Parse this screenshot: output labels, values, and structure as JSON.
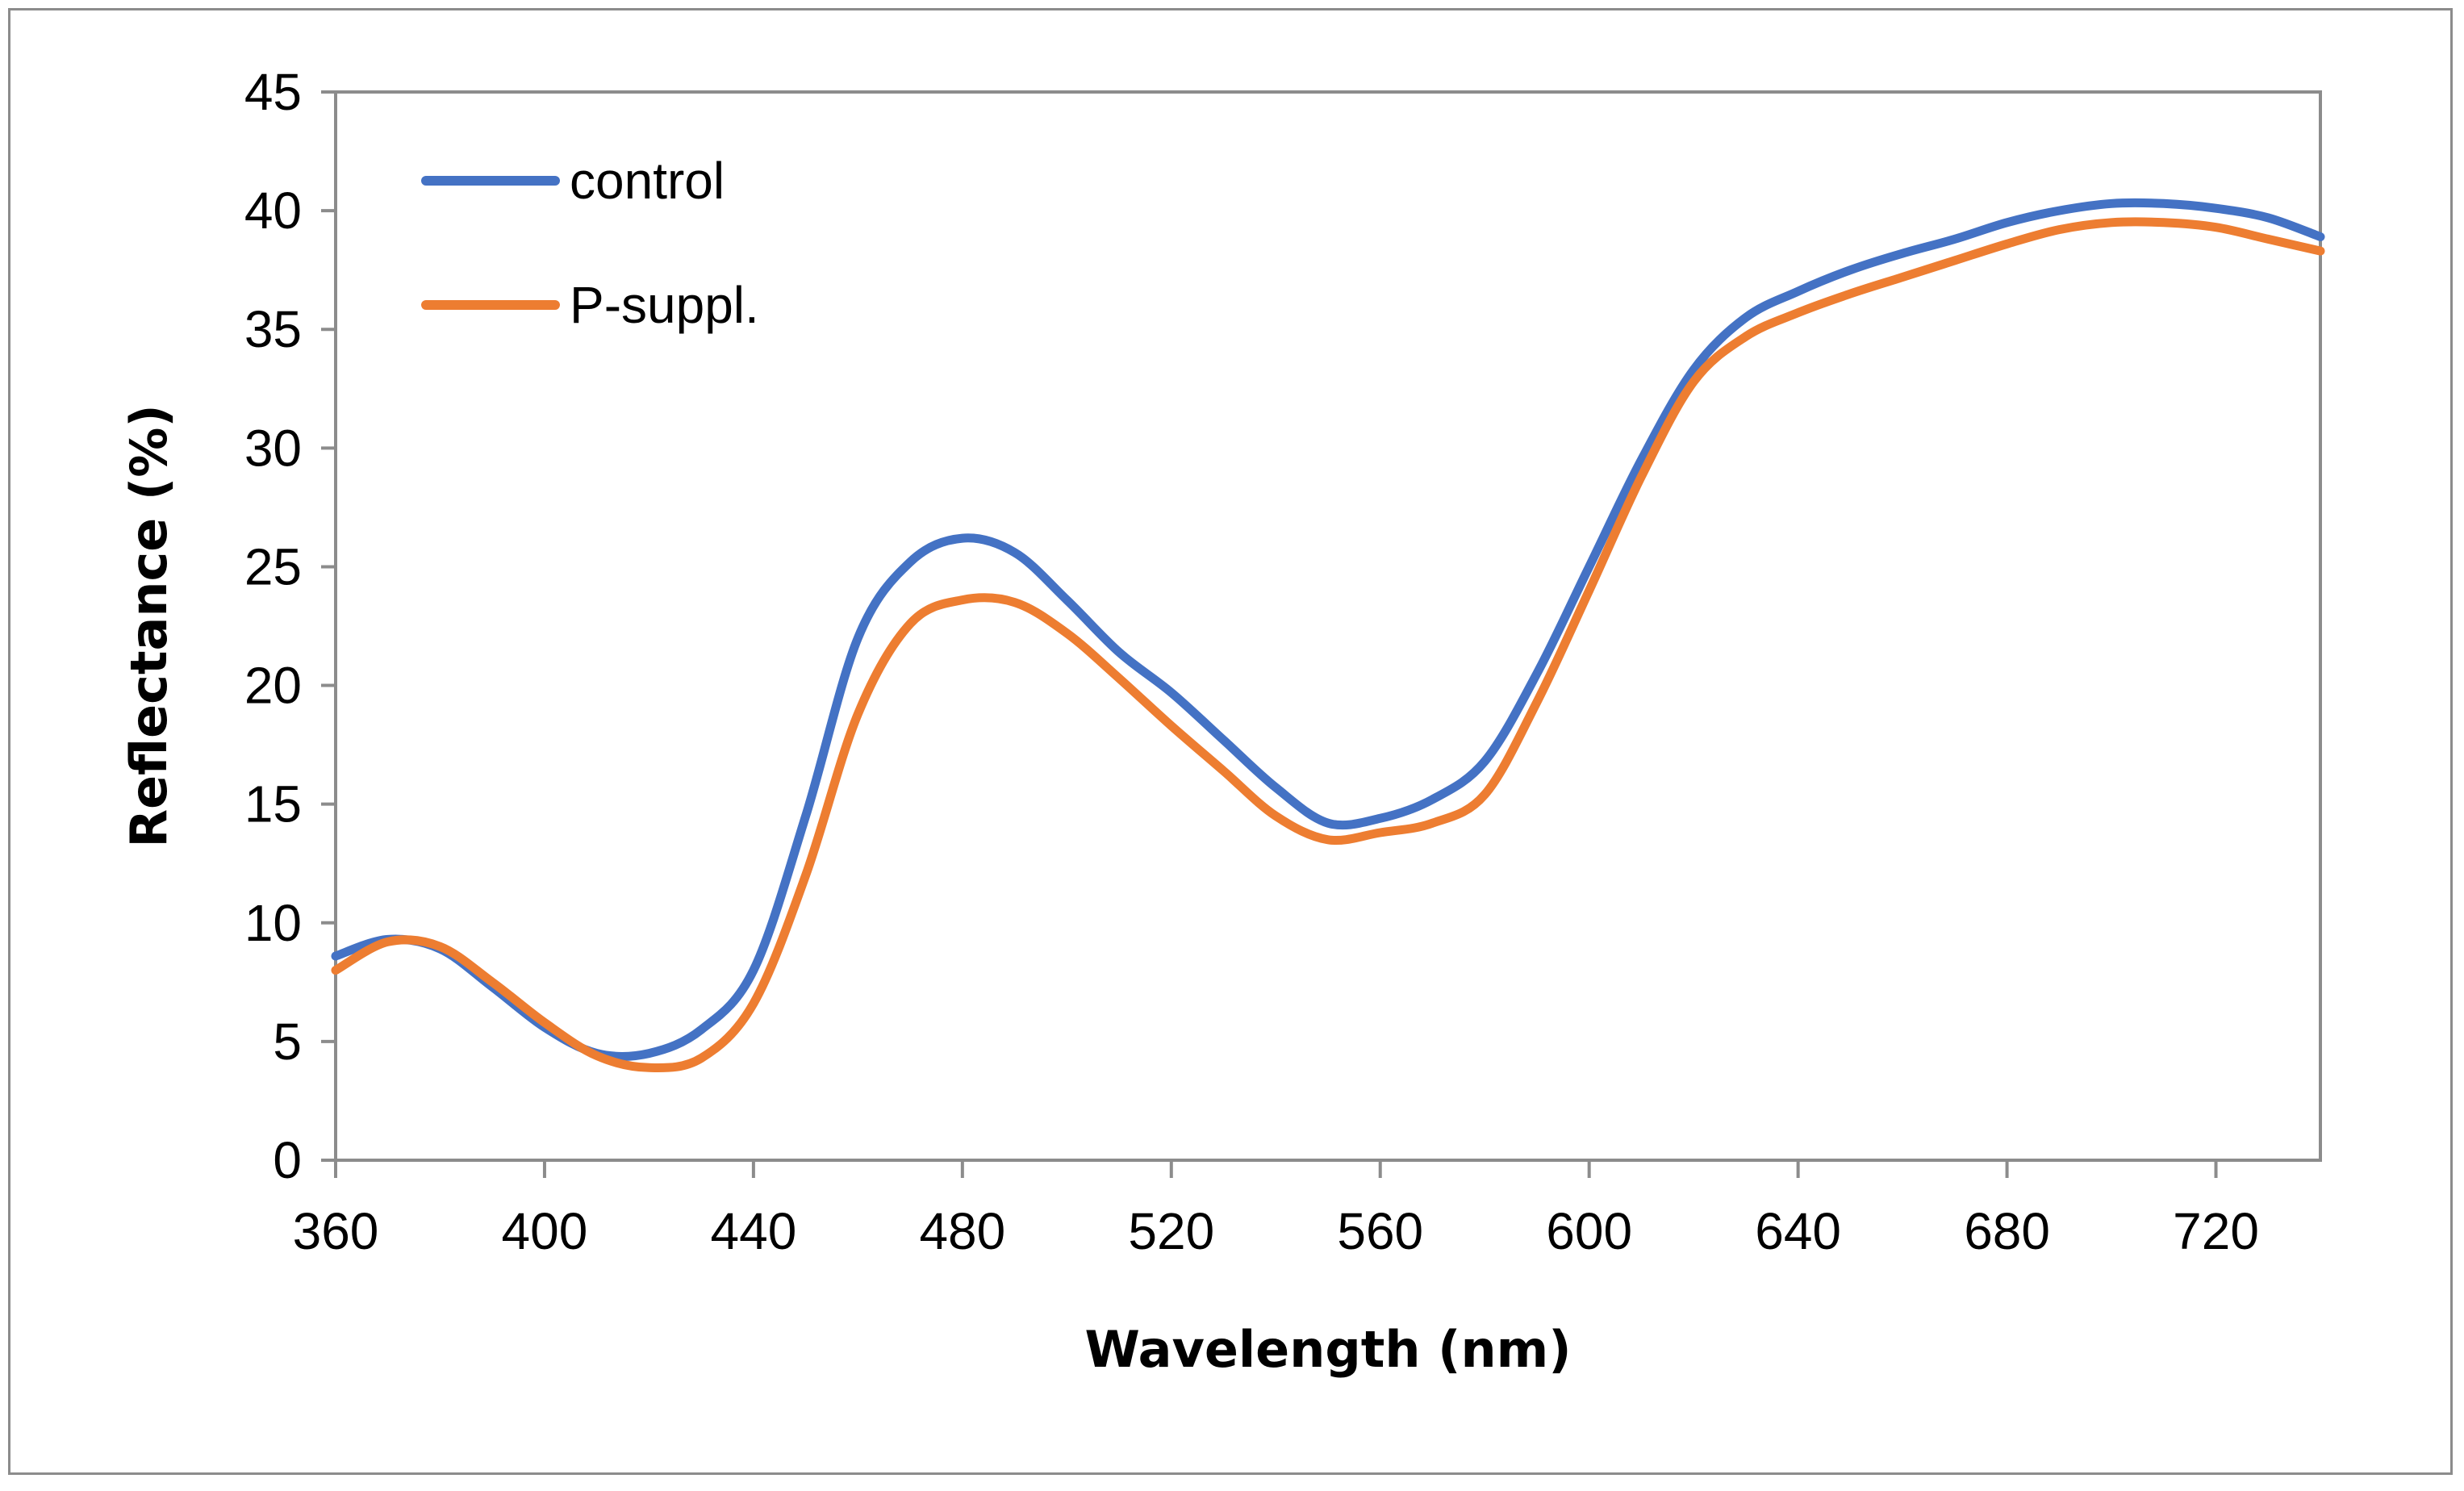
{
  "chart_data": {
    "type": "line",
    "title": "",
    "xlabel": "Wavelength (nm)",
    "ylabel": "Reflectance (%)",
    "xlim": [
      360,
      740
    ],
    "ylim": [
      0,
      45
    ],
    "xticks": [
      360,
      400,
      440,
      480,
      520,
      560,
      600,
      640,
      680,
      720
    ],
    "yticks": [
      0,
      5,
      10,
      15,
      20,
      25,
      30,
      35,
      40,
      45
    ],
    "grid": false,
    "legend_position": "top-left",
    "x": [
      360,
      370,
      380,
      390,
      400,
      410,
      420,
      430,
      440,
      450,
      460,
      470,
      480,
      490,
      500,
      510,
      520,
      530,
      540,
      550,
      560,
      570,
      580,
      590,
      600,
      610,
      620,
      630,
      640,
      650,
      660,
      670,
      680,
      690,
      700,
      710,
      720,
      730,
      740
    ],
    "series": [
      {
        "name": "control",
        "color": "#4472C4",
        "values": [
          8.6,
          9.3,
          8.9,
          7.3,
          5.6,
          4.5,
          4.5,
          5.5,
          8.0,
          14.5,
          22.0,
          25.2,
          26.2,
          25.6,
          23.6,
          21.4,
          19.7,
          17.7,
          15.7,
          14.2,
          14.4,
          15.2,
          16.8,
          20.5,
          25.0,
          29.5,
          33.3,
          35.5,
          36.6,
          37.5,
          38.2,
          38.8,
          39.5,
          40.0,
          40.3,
          40.3,
          40.1,
          39.7,
          38.9
        ]
      },
      {
        "name": "P-suppl.",
        "color": "#ED7D31",
        "values": [
          8.0,
          9.2,
          9.0,
          7.5,
          5.8,
          4.4,
          3.9,
          4.3,
          6.6,
          12.0,
          18.8,
          22.6,
          23.6,
          23.5,
          22.2,
          20.3,
          18.3,
          16.4,
          14.5,
          13.5,
          13.8,
          14.2,
          15.4,
          19.3,
          24.0,
          28.8,
          32.8,
          34.7,
          35.7,
          36.5,
          37.2,
          37.9,
          38.6,
          39.2,
          39.5,
          39.5,
          39.3,
          38.8,
          38.3
        ]
      }
    ]
  }
}
